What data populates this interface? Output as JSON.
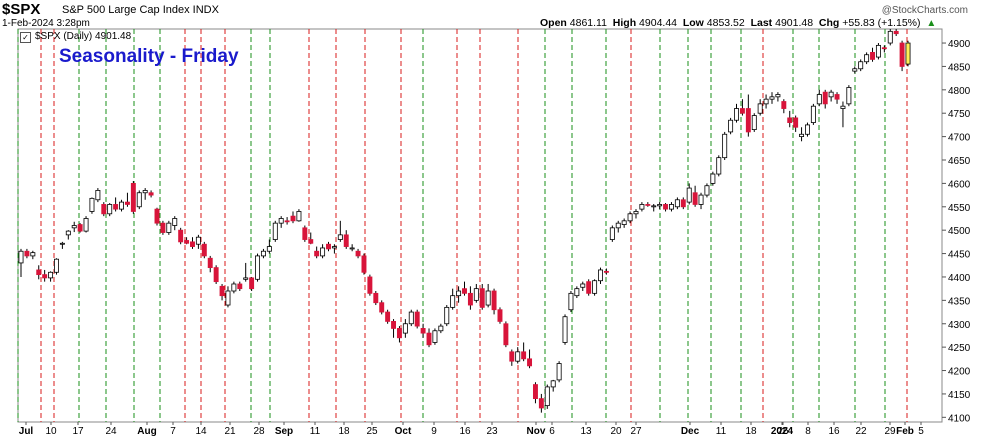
{
  "header": {
    "symbol": "$SPX",
    "name": "S&P 500 Large Cap Index INDX",
    "datetime": "1-Feb-2024 3:28pm",
    "logo": "@StockCharts.com",
    "open_label": "Open",
    "open": "4861.11",
    "high_label": "High",
    "high": "4904.44",
    "low_label": "Low",
    "low": "4853.52",
    "last_label": "Last",
    "last": "4901.48",
    "chg_label": "Chg",
    "chg": "+55.83 (+1.15%)",
    "chg_icon": "up-triangle-icon"
  },
  "series_caption": "$SPX (Daily) 4901.48",
  "chart_title": "Seasonality - Friday",
  "colors": {
    "up": "#ffffff",
    "down": "#d8143a",
    "grid_green": "#1a8f1a",
    "grid_red": "#d81b1b",
    "highlight": "#ffee58",
    "title": "#1a1acc"
  },
  "chart_data": {
    "type": "candlestick",
    "title": "Seasonality - Friday",
    "ylim": [
      4090,
      4930
    ],
    "y_ticks": [
      4100,
      4150,
      4200,
      4250,
      4300,
      4350,
      4400,
      4450,
      4500,
      4550,
      4600,
      4650,
      4700,
      4750,
      4800,
      4850,
      4900
    ],
    "x_tick_labels": [
      "Jul",
      "10",
      "17",
      "24",
      "Aug",
      "7",
      "14",
      "21",
      "28",
      "Sep",
      "11",
      "18",
      "25",
      "Oct",
      "9",
      "16",
      "23",
      "Nov",
      "6",
      "13",
      "20",
      "27",
      "Dec",
      "11",
      "18",
      "26",
      "2024",
      "8",
      "16",
      "22",
      "29",
      "Feb",
      "5"
    ],
    "friday_lines": "green = Friday up-day, red = Friday down-day",
    "candles": [
      {
        "o": 4430,
        "h": 4460,
        "l": 4400,
        "c": 4455
      },
      {
        "o": 4455,
        "h": 4460,
        "l": 4440,
        "c": 4445
      },
      {
        "o": 4445,
        "h": 4456,
        "l": 4438,
        "c": 4452
      },
      {
        "o": 4415,
        "h": 4425,
        "l": 4395,
        "c": 4405
      },
      {
        "o": 4405,
        "h": 4415,
        "l": 4390,
        "c": 4398
      },
      {
        "o": 4398,
        "h": 4412,
        "l": 4390,
        "c": 4410
      },
      {
        "o": 4410,
        "h": 4440,
        "l": 4405,
        "c": 4438
      },
      {
        "o": 4470,
        "h": 4475,
        "l": 4460,
        "c": 4472
      },
      {
        "o": 4490,
        "h": 4500,
        "l": 4480,
        "c": 4498
      },
      {
        "o": 4505,
        "h": 4518,
        "l": 4496,
        "c": 4510
      },
      {
        "o": 4512,
        "h": 4515,
        "l": 4495,
        "c": 4498
      },
      {
        "o": 4498,
        "h": 4530,
        "l": 4495,
        "c": 4525
      },
      {
        "o": 4540,
        "h": 4570,
        "l": 4535,
        "c": 4568
      },
      {
        "o": 4565,
        "h": 4590,
        "l": 4560,
        "c": 4585
      },
      {
        "o": 4555,
        "h": 4560,
        "l": 4530,
        "c": 4535
      },
      {
        "o": 4535,
        "h": 4558,
        "l": 4530,
        "c": 4555
      },
      {
        "o": 4555,
        "h": 4570,
        "l": 4540,
        "c": 4545
      },
      {
        "o": 4545,
        "h": 4565,
        "l": 4540,
        "c": 4560
      },
      {
        "o": 4560,
        "h": 4580,
        "l": 4550,
        "c": 4555
      },
      {
        "o": 4600,
        "h": 4605,
        "l": 4535,
        "c": 4540
      },
      {
        "o": 4550,
        "h": 4585,
        "l": 4545,
        "c": 4580
      },
      {
        "o": 4580,
        "h": 4590,
        "l": 4565,
        "c": 4585
      },
      {
        "o": 4580,
        "h": 4585,
        "l": 4570,
        "c": 4575
      },
      {
        "o": 4545,
        "h": 4548,
        "l": 4510,
        "c": 4515
      },
      {
        "o": 4515,
        "h": 4520,
        "l": 4490,
        "c": 4495
      },
      {
        "o": 4495,
        "h": 4520,
        "l": 4490,
        "c": 4515
      },
      {
        "o": 4510,
        "h": 4530,
        "l": 4500,
        "c": 4525
      },
      {
        "o": 4500,
        "h": 4505,
        "l": 4470,
        "c": 4475
      },
      {
        "o": 4478,
        "h": 4485,
        "l": 4470,
        "c": 4472
      },
      {
        "o": 4475,
        "h": 4485,
        "l": 4460,
        "c": 4465
      },
      {
        "o": 4470,
        "h": 4490,
        "l": 4460,
        "c": 4485
      },
      {
        "o": 4470,
        "h": 4475,
        "l": 4440,
        "c": 4445
      },
      {
        "o": 4440,
        "h": 4445,
        "l": 4410,
        "c": 4420
      },
      {
        "o": 4420,
        "h": 4425,
        "l": 4385,
        "c": 4390
      },
      {
        "o": 4380,
        "h": 4385,
        "l": 4350,
        "c": 4360
      },
      {
        "o": 4340,
        "h": 4380,
        "l": 4335,
        "c": 4370
      },
      {
        "o": 4370,
        "h": 4390,
        "l": 4365,
        "c": 4385
      },
      {
        "o": 4385,
        "h": 4390,
        "l": 4370,
        "c": 4375
      },
      {
        "o": 4395,
        "h": 4430,
        "l": 4390,
        "c": 4398
      },
      {
        "o": 4398,
        "h": 4400,
        "l": 4370,
        "c": 4375
      },
      {
        "o": 4395,
        "h": 4450,
        "l": 4390,
        "c": 4445
      },
      {
        "o": 4445,
        "h": 4460,
        "l": 4440,
        "c": 4455
      },
      {
        "o": 4455,
        "h": 4480,
        "l": 4450,
        "c": 4465
      },
      {
        "o": 4480,
        "h": 4520,
        "l": 4475,
        "c": 4515
      },
      {
        "o": 4515,
        "h": 4530,
        "l": 4505,
        "c": 4525
      },
      {
        "o": 4520,
        "h": 4528,
        "l": 4512,
        "c": 4518
      },
      {
        "o": 4530,
        "h": 4540,
        "l": 4515,
        "c": 4520
      },
      {
        "o": 4520,
        "h": 4545,
        "l": 4518,
        "c": 4540
      },
      {
        "o": 4505,
        "h": 4510,
        "l": 4475,
        "c": 4480
      },
      {
        "o": 4480,
        "h": 4495,
        "l": 4470,
        "c": 4472
      },
      {
        "o": 4455,
        "h": 4465,
        "l": 4440,
        "c": 4445
      },
      {
        "o": 4445,
        "h": 4470,
        "l": 4440,
        "c": 4462
      },
      {
        "o": 4470,
        "h": 4475,
        "l": 4455,
        "c": 4460
      },
      {
        "o": 4462,
        "h": 4470,
        "l": 4450,
        "c": 4465
      },
      {
        "o": 4480,
        "h": 4520,
        "l": 4475,
        "c": 4490
      },
      {
        "o": 4490,
        "h": 4500,
        "l": 4460,
        "c": 4465
      },
      {
        "o": 4460,
        "h": 4470,
        "l": 4455,
        "c": 4462
      },
      {
        "o": 4455,
        "h": 4460,
        "l": 4440,
        "c": 4445
      },
      {
        "o": 4445,
        "h": 4450,
        "l": 4405,
        "c": 4410
      },
      {
        "o": 4400,
        "h": 4405,
        "l": 4360,
        "c": 4365
      },
      {
        "o": 4365,
        "h": 4370,
        "l": 4340,
        "c": 4345
      },
      {
        "o": 4345,
        "h": 4350,
        "l": 4320,
        "c": 4325
      },
      {
        "o": 4325,
        "h": 4330,
        "l": 4300,
        "c": 4305
      },
      {
        "o": 4305,
        "h": 4310,
        "l": 4270,
        "c": 4290
      },
      {
        "o": 4290,
        "h": 4295,
        "l": 4260,
        "c": 4270
      },
      {
        "o": 4280,
        "h": 4310,
        "l": 4270,
        "c": 4300
      },
      {
        "o": 4300,
        "h": 4330,
        "l": 4295,
        "c": 4325
      },
      {
        "o": 4325,
        "h": 4330,
        "l": 4290,
        "c": 4295
      },
      {
        "o": 4290,
        "h": 4300,
        "l": 4270,
        "c": 4280
      },
      {
        "o": 4280,
        "h": 4290,
        "l": 4250,
        "c": 4255
      },
      {
        "o": 4260,
        "h": 4290,
        "l": 4255,
        "c": 4285
      },
      {
        "o": 4285,
        "h": 4300,
        "l": 4280,
        "c": 4295
      },
      {
        "o": 4300,
        "h": 4340,
        "l": 4295,
        "c": 4335
      },
      {
        "o": 4335,
        "h": 4375,
        "l": 4330,
        "c": 4360
      },
      {
        "o": 4360,
        "h": 4380,
        "l": 4345,
        "c": 4370
      },
      {
        "o": 4375,
        "h": 4390,
        "l": 4360,
        "c": 4365
      },
      {
        "o": 4365,
        "h": 4380,
        "l": 4330,
        "c": 4340
      },
      {
        "o": 4350,
        "h": 4385,
        "l": 4345,
        "c": 4375
      },
      {
        "o": 4375,
        "h": 4385,
        "l": 4330,
        "c": 4335
      },
      {
        "o": 4340,
        "h": 4385,
        "l": 4335,
        "c": 4370
      },
      {
        "o": 4370,
        "h": 4375,
        "l": 4320,
        "c": 4330
      },
      {
        "o": 4330,
        "h": 4335,
        "l": 4300,
        "c": 4305
      },
      {
        "o": 4300,
        "h": 4305,
        "l": 4250,
        "c": 4255
      },
      {
        "o": 4240,
        "h": 4245,
        "l": 4210,
        "c": 4220
      },
      {
        "o": 4220,
        "h": 4250,
        "l": 4215,
        "c": 4240
      },
      {
        "o": 4240,
        "h": 4260,
        "l": 4220,
        "c": 4225
      },
      {
        "o": 4225,
        "h": 4245,
        "l": 4205,
        "c": 4210
      },
      {
        "o": 4170,
        "h": 4175,
        "l": 4130,
        "c": 4140
      },
      {
        "o": 4140,
        "h": 4150,
        "l": 4110,
        "c": 4120
      },
      {
        "o": 4125,
        "h": 4170,
        "l": 4118,
        "c": 4165
      },
      {
        "o": 4165,
        "h": 4180,
        "l": 4155,
        "c": 4178
      },
      {
        "o": 4180,
        "h": 4220,
        "l": 4175,
        "c": 4215
      },
      {
        "o": 4260,
        "h": 4320,
        "l": 4255,
        "c": 4315
      },
      {
        "o": 4330,
        "h": 4370,
        "l": 4325,
        "c": 4365
      },
      {
        "o": 4360,
        "h": 4380,
        "l": 4355,
        "c": 4375
      },
      {
        "o": 4378,
        "h": 4390,
        "l": 4370,
        "c": 4385
      },
      {
        "o": 4390,
        "h": 4395,
        "l": 4360,
        "c": 4365
      },
      {
        "o": 4365,
        "h": 4395,
        "l": 4360,
        "c": 4392
      },
      {
        "o": 4392,
        "h": 4420,
        "l": 4385,
        "c": 4415
      },
      {
        "o": 4412,
        "h": 4418,
        "l": 4405,
        "c": 4410
      },
      {
        "o": 4480,
        "h": 4510,
        "l": 4475,
        "c": 4505
      },
      {
        "o": 4505,
        "h": 4520,
        "l": 4495,
        "c": 4515
      },
      {
        "o": 4512,
        "h": 4525,
        "l": 4505,
        "c": 4520
      },
      {
        "o": 4520,
        "h": 4540,
        "l": 4515,
        "c": 4535
      },
      {
        "o": 4535,
        "h": 4545,
        "l": 4525,
        "c": 4540
      },
      {
        "o": 4545,
        "h": 4560,
        "l": 4540,
        "c": 4555
      },
      {
        "o": 4555,
        "h": 4560,
        "l": 4550,
        "c": 4553
      },
      {
        "o": 4550,
        "h": 4556,
        "l": 4540,
        "c": 4552
      },
      {
        "o": 4552,
        "h": 4560,
        "l": 4545,
        "c": 4555
      },
      {
        "o": 4555,
        "h": 4558,
        "l": 4540,
        "c": 4545
      },
      {
        "o": 4545,
        "h": 4560,
        "l": 4540,
        "c": 4555
      },
      {
        "o": 4550,
        "h": 4570,
        "l": 4545,
        "c": 4565
      },
      {
        "o": 4565,
        "h": 4570,
        "l": 4545,
        "c": 4550
      },
      {
        "o": 4560,
        "h": 4600,
        "l": 4555,
        "c": 4590
      },
      {
        "o": 4580,
        "h": 4595,
        "l": 4550,
        "c": 4555
      },
      {
        "o": 4555,
        "h": 4580,
        "l": 4545,
        "c": 4575
      },
      {
        "o": 4575,
        "h": 4600,
        "l": 4570,
        "c": 4595
      },
      {
        "o": 4600,
        "h": 4625,
        "l": 4595,
        "c": 4620
      },
      {
        "o": 4620,
        "h": 4660,
        "l": 4615,
        "c": 4655
      },
      {
        "o": 4655,
        "h": 4710,
        "l": 4650,
        "c": 4705
      },
      {
        "o": 4710,
        "h": 4740,
        "l": 4705,
        "c": 4735
      },
      {
        "o": 4735,
        "h": 4770,
        "l": 4730,
        "c": 4760
      },
      {
        "o": 4760,
        "h": 4780,
        "l": 4745,
        "c": 4750
      },
      {
        "o": 4760,
        "h": 4790,
        "l": 4700,
        "c": 4710
      },
      {
        "o": 4715,
        "h": 4750,
        "l": 4710,
        "c": 4745
      },
      {
        "o": 4750,
        "h": 4780,
        "l": 4745,
        "c": 4770
      },
      {
        "o": 4770,
        "h": 4790,
        "l": 4760,
        "c": 4780
      },
      {
        "o": 4780,
        "h": 4795,
        "l": 4770,
        "c": 4785
      },
      {
        "o": 4785,
        "h": 4795,
        "l": 4775,
        "c": 4790
      },
      {
        "o": 4775,
        "h": 4780,
        "l": 4750,
        "c": 4760
      },
      {
        "o": 4740,
        "h": 4755,
        "l": 4720,
        "c": 4730
      },
      {
        "o": 4740,
        "h": 4745,
        "l": 4710,
        "c": 4720
      },
      {
        "o": 4700,
        "h": 4720,
        "l": 4690,
        "c": 4705
      },
      {
        "o": 4705,
        "h": 4730,
        "l": 4700,
        "c": 4725
      },
      {
        "o": 4730,
        "h": 4770,
        "l": 4725,
        "c": 4765
      },
      {
        "o": 4770,
        "h": 4800,
        "l": 4765,
        "c": 4790
      },
      {
        "o": 4795,
        "h": 4800,
        "l": 4760,
        "c": 4770
      },
      {
        "o": 4785,
        "h": 4800,
        "l": 4775,
        "c": 4795
      },
      {
        "o": 4790,
        "h": 4795,
        "l": 4770,
        "c": 4780
      },
      {
        "o": 4760,
        "h": 4775,
        "l": 4720,
        "c": 4765
      },
      {
        "o": 4770,
        "h": 4810,
        "l": 4765,
        "c": 4805
      },
      {
        "o": 4840,
        "h": 4850,
        "l": 4835,
        "c": 4845
      },
      {
        "o": 4845,
        "h": 4865,
        "l": 4840,
        "c": 4860
      },
      {
        "o": 4860,
        "h": 4880,
        "l": 4855,
        "c": 4875
      },
      {
        "o": 4880,
        "h": 4890,
        "l": 4860,
        "c": 4865
      },
      {
        "o": 4870,
        "h": 4900,
        "l": 4865,
        "c": 4895
      },
      {
        "o": 4890,
        "h": 4895,
        "l": 4880,
        "c": 4888
      },
      {
        "o": 4900,
        "h": 4930,
        "l": 4895,
        "c": 4925
      },
      {
        "o": 4925,
        "h": 4930,
        "l": 4915,
        "c": 4920
      },
      {
        "o": 4900,
        "h": 4905,
        "l": 4840,
        "c": 4850
      },
      {
        "o": 4855,
        "h": 4905,
        "l": 4850,
        "c": 4900
      }
    ],
    "highlight_last": true
  }
}
